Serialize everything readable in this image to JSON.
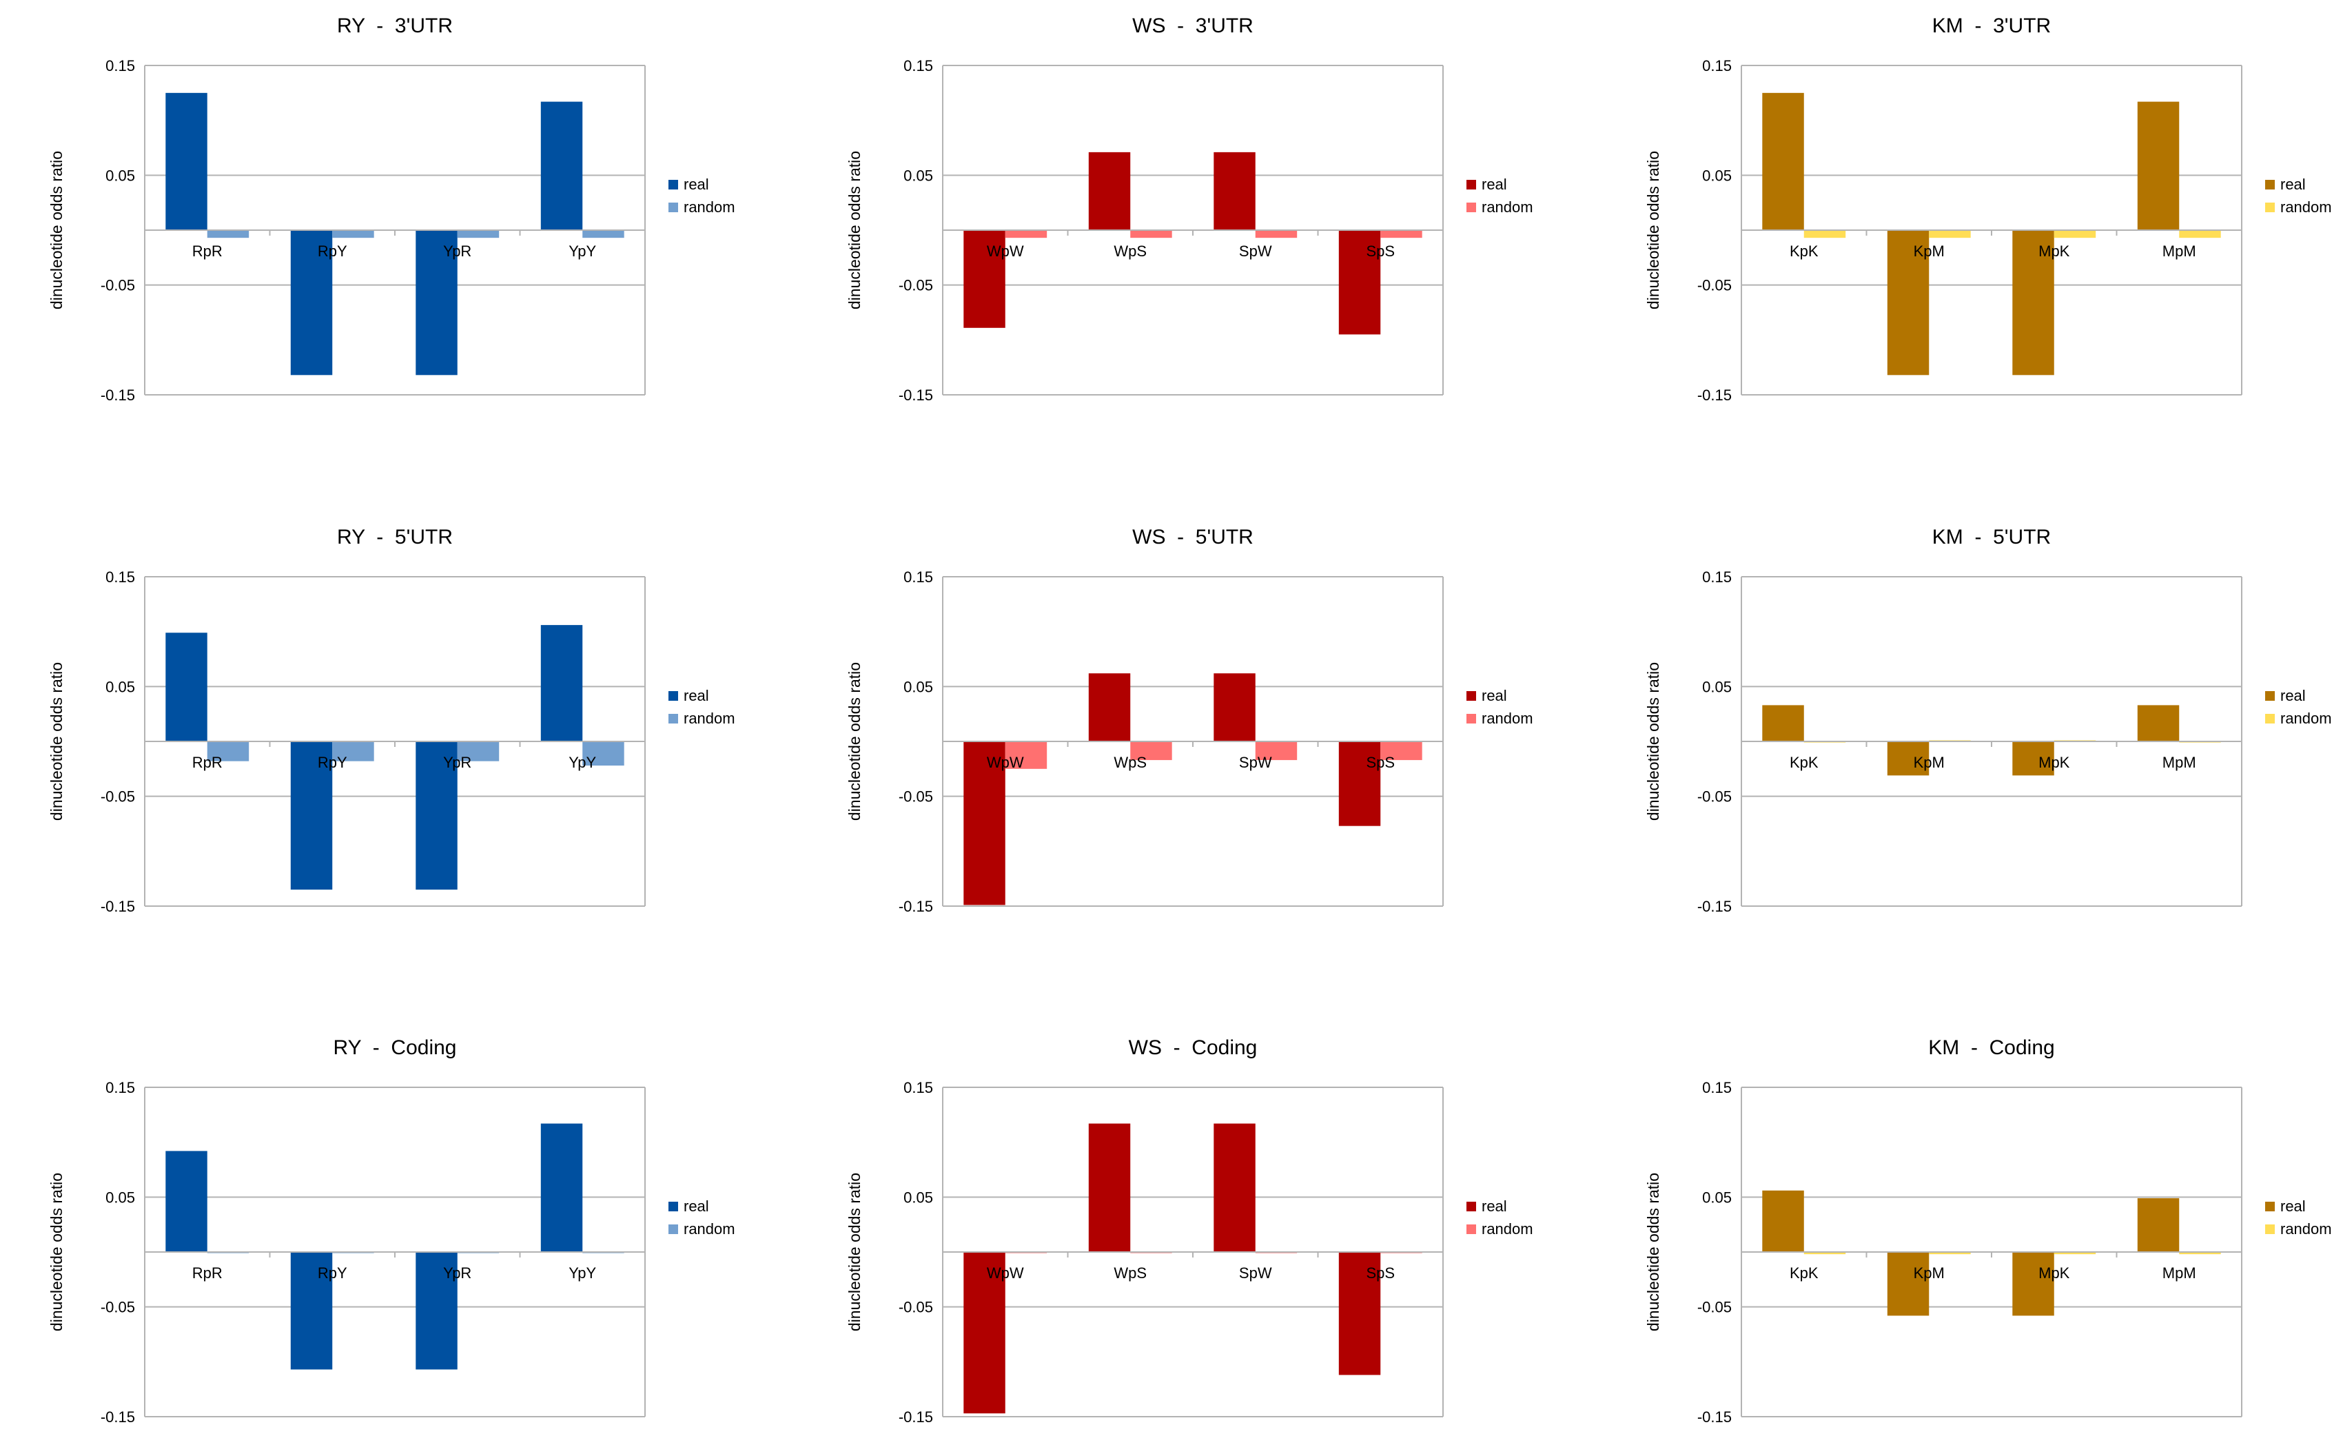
{
  "chart_data": [
    {
      "type": "bar",
      "title": "RY  -  3'UTR",
      "ylabel": "dinucleotide odds ratio",
      "ylim": [
        -0.15,
        0.15
      ],
      "yticks": [
        "0.15",
        "0.05",
        "-0.05",
        "-0.15"
      ],
      "categories": [
        "RpR",
        "RpY",
        "YpR",
        "YpY"
      ],
      "colors": {
        "real": "#0050a0",
        "random": "#729fcf"
      },
      "series": [
        {
          "name": "real",
          "values": [
            0.125,
            -0.132,
            -0.132,
            0.117
          ]
        },
        {
          "name": "random",
          "values": [
            -0.007,
            -0.007,
            -0.007,
            -0.007
          ]
        }
      ]
    },
    {
      "type": "bar",
      "title": "WS  -  3'UTR",
      "ylabel": "dinucleotide odds ratio",
      "ylim": [
        -0.15,
        0.15
      ],
      "yticks": [
        "0.15",
        "0.05",
        "-0.05",
        "-0.15"
      ],
      "categories": [
        "WpW",
        "WpS",
        "SpW",
        "SpS"
      ],
      "colors": {
        "real": "#b00000",
        "random": "#ff7070"
      },
      "series": [
        {
          "name": "real",
          "values": [
            -0.089,
            0.071,
            0.071,
            -0.095
          ]
        },
        {
          "name": "random",
          "values": [
            -0.007,
            -0.007,
            -0.007,
            -0.007
          ]
        }
      ]
    },
    {
      "type": "bar",
      "title": "KM  -  3'UTR",
      "ylabel": "dinucleotide odds ratio",
      "ylim": [
        -0.15,
        0.15
      ],
      "yticks": [
        "0.15",
        "0.05",
        "-0.05",
        "-0.15"
      ],
      "categories": [
        "KpK",
        "KpM",
        "MpK",
        "MpM"
      ],
      "colors": {
        "real": "#b27400",
        "random": "#ffdd55"
      },
      "series": [
        {
          "name": "real",
          "values": [
            0.125,
            -0.132,
            -0.132,
            0.117
          ]
        },
        {
          "name": "random",
          "values": [
            -0.007,
            -0.007,
            -0.007,
            -0.007
          ]
        }
      ]
    },
    {
      "type": "bar",
      "title": "RY  -  5'UTR",
      "ylabel": "dinucleotide odds ratio",
      "ylim": [
        -0.15,
        0.15
      ],
      "yticks": [
        "0.15",
        "0.05",
        "-0.05",
        "-0.15"
      ],
      "categories": [
        "RpR",
        "RpY",
        "YpR",
        "YpY"
      ],
      "colors": {
        "real": "#0050a0",
        "random": "#729fcf"
      },
      "series": [
        {
          "name": "real",
          "values": [
            0.099,
            -0.135,
            -0.135,
            0.106
          ]
        },
        {
          "name": "random",
          "values": [
            -0.018,
            -0.018,
            -0.018,
            -0.022
          ]
        }
      ]
    },
    {
      "type": "bar",
      "title": "WS  -  5'UTR",
      "ylabel": "dinucleotide odds ratio",
      "ylim": [
        -0.15,
        0.15
      ],
      "yticks": [
        "0.15",
        "0.05",
        "-0.05",
        "-0.15"
      ],
      "categories": [
        "WpW",
        "WpS",
        "SpW",
        "SpS"
      ],
      "colors": {
        "real": "#b00000",
        "random": "#ff7070"
      },
      "series": [
        {
          "name": "real",
          "values": [
            -0.149,
            0.062,
            0.062,
            -0.077
          ]
        },
        {
          "name": "random",
          "values": [
            -0.025,
            -0.017,
            -0.017,
            -0.017
          ]
        }
      ]
    },
    {
      "type": "bar",
      "title": "KM  -  5'UTR",
      "ylabel": "dinucleotide odds ratio",
      "ylim": [
        -0.15,
        0.15
      ],
      "yticks": [
        "0.15",
        "0.05",
        "-0.05",
        "-0.15"
      ],
      "categories": [
        "KpK",
        "KpM",
        "MpK",
        "MpM"
      ],
      "colors": {
        "real": "#b27400",
        "random": "#ffdd55"
      },
      "series": [
        {
          "name": "real",
          "values": [
            0.033,
            -0.031,
            -0.031,
            0.033
          ]
        },
        {
          "name": "random",
          "values": [
            -0.001,
            0.001,
            0.001,
            -0.001
          ]
        }
      ]
    },
    {
      "type": "bar",
      "title": "RY  -  Coding",
      "ylabel": "dinucleotide odds ratio",
      "ylim": [
        -0.15,
        0.15
      ],
      "yticks": [
        "0.15",
        "0.05",
        "-0.05",
        "-0.15"
      ],
      "categories": [
        "RpR",
        "RpY",
        "YpR",
        "YpY"
      ],
      "colors": {
        "real": "#0050a0",
        "random": "#729fcf"
      },
      "series": [
        {
          "name": "real",
          "values": [
            0.092,
            -0.107,
            -0.107,
            0.117
          ]
        },
        {
          "name": "random",
          "values": [
            -0.001,
            -0.001,
            -0.001,
            -0.001
          ]
        }
      ]
    },
    {
      "type": "bar",
      "title": "WS  -  Coding",
      "ylabel": "dinucleotide odds ratio",
      "ylim": [
        -0.15,
        0.15
      ],
      "yticks": [
        "0.15",
        "0.05",
        "-0.05",
        "-0.15"
      ],
      "categories": [
        "WpW",
        "WpS",
        "SpW",
        "SpS"
      ],
      "colors": {
        "real": "#b00000",
        "random": "#ff7070"
      },
      "series": [
        {
          "name": "real",
          "values": [
            -0.147,
            0.117,
            0.117,
            -0.112
          ]
        },
        {
          "name": "random",
          "values": [
            -0.001,
            -0.001,
            -0.001,
            -0.001
          ]
        }
      ]
    },
    {
      "type": "bar",
      "title": "KM  -  Coding",
      "ylabel": "dinucleotide odds ratio",
      "ylim": [
        -0.15,
        0.15
      ],
      "yticks": [
        "0.15",
        "0.05",
        "-0.05",
        "-0.15"
      ],
      "categories": [
        "KpK",
        "KpM",
        "MpK",
        "MpM"
      ],
      "colors": {
        "real": "#b27400",
        "random": "#ffdd55"
      },
      "series": [
        {
          "name": "real",
          "values": [
            0.056,
            -0.058,
            -0.058,
            0.049
          ]
        },
        {
          "name": "random",
          "values": [
            -0.002,
            -0.002,
            -0.002,
            -0.002
          ]
        }
      ]
    }
  ]
}
